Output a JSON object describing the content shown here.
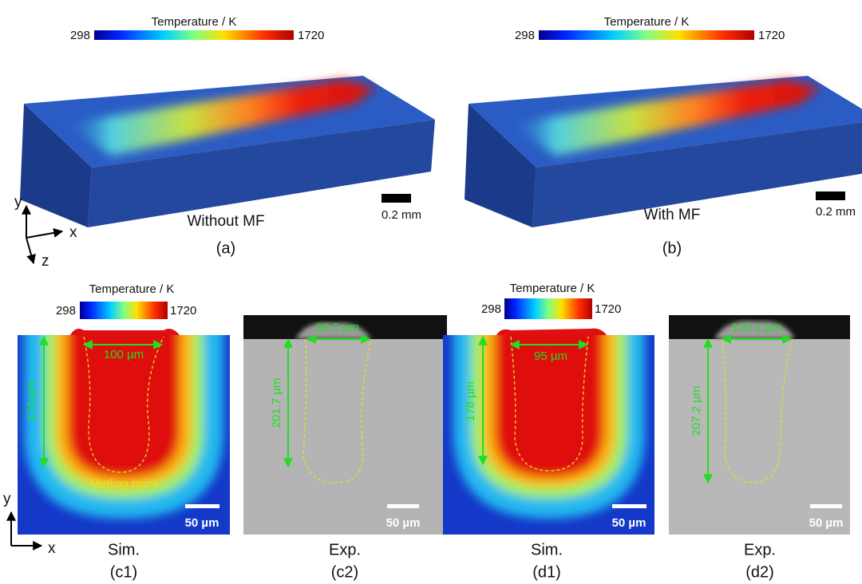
{
  "panels": [
    {
      "colorbar": {
        "title": "Temperature / K",
        "min": "298",
        "max": "1720"
      },
      "caption": "Without MF",
      "label": "(a)",
      "scale_bar": "0.2 mm"
    },
    {
      "colorbar": {
        "title": "Temperature / K",
        "min": "298",
        "max": "1720"
      },
      "caption": "With MF",
      "label": "(b)",
      "scale_bar": "0.2 mm"
    }
  ],
  "axes_3d": {
    "x": "x",
    "y": "y",
    "z": "z"
  },
  "cross_sections": [
    {
      "colorbar": {
        "title": "Temperature  / K",
        "min": "298",
        "max": "1720"
      },
      "width_label": "100 µm",
      "depth_label": "174 µm",
      "annotation": "Metling point",
      "scale_bar": "50 µm",
      "caption": "Sim.",
      "label": "(c1)"
    },
    {
      "width_label": "99.5 µm",
      "depth_label": "201.7 µm",
      "scale_bar": "50 µm",
      "caption": "Exp.",
      "label": "(c2)"
    },
    {
      "colorbar": {
        "title": "Temperature / K",
        "min": "298",
        "max": "1720"
      },
      "width_label": "95 µm",
      "depth_label": "178 µm",
      "scale_bar": "50 µm",
      "caption": "Sim.",
      "label": "(d1)"
    },
    {
      "width_label": "100.1 µm",
      "depth_label": "207.2 µm",
      "scale_bar": "50 µm",
      "caption": "Exp.",
      "label": "(d2)"
    }
  ],
  "axes_2d": {
    "x": "x",
    "y": "y"
  }
}
